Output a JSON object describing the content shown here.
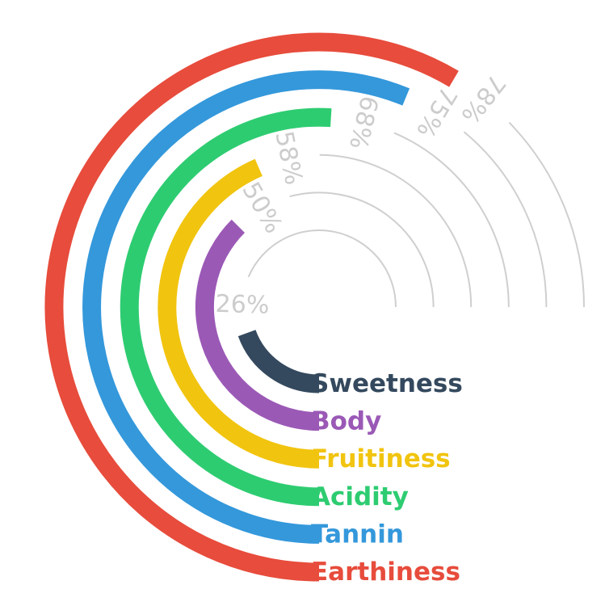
{
  "chart_data": {
    "type": "radial-bar",
    "title": "",
    "max": 100,
    "categories": [
      "Sweetness",
      "Body",
      "Fruitiness",
      "Acidity",
      "Tannin",
      "Earthiness"
    ],
    "series": [
      {
        "category": "Sweetness",
        "value": 26,
        "label": "26%",
        "color": "#34495e"
      },
      {
        "category": "Body",
        "value": 50,
        "label": "50%",
        "color": "#9b59b6"
      },
      {
        "category": "Fruitiness",
        "value": 58,
        "label": "58%",
        "color": "#f1c40f"
      },
      {
        "category": "Acidity",
        "value": 68,
        "label": "68%",
        "color": "#2ecc71"
      },
      {
        "category": "Tannin",
        "value": 75,
        "label": "75%",
        "color": "#3498db"
      },
      {
        "category": "Earthiness",
        "value": 78,
        "label": "78%",
        "color": "#e74c3c"
      }
    ],
    "track_color": "#cfcfcf",
    "value_label_color": "#cccccc"
  }
}
